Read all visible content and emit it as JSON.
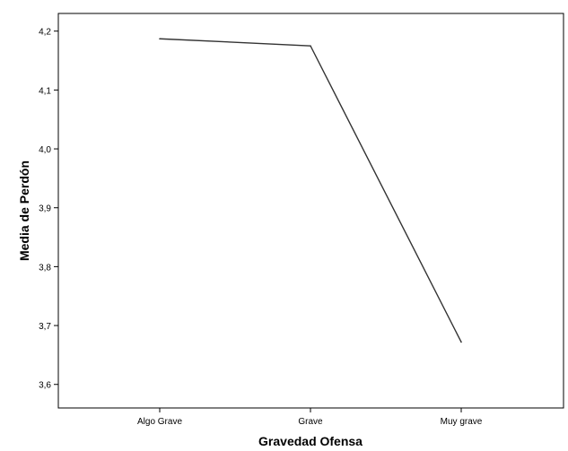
{
  "chart_data": {
    "type": "line",
    "title": "",
    "xlabel": "Gravedad Ofensa",
    "ylabel": "Media de Perdón",
    "categories": [
      "Algo Grave",
      "Grave",
      "Muy grave"
    ],
    "series": [
      {
        "values": [
          4.187,
          4.175,
          3.672
        ]
      }
    ],
    "ylim": [
      3.56,
      4.23
    ],
    "yticks": [
      "4,2",
      "4,1",
      "4,0",
      "3,9",
      "3,8",
      "3,7",
      "3,6"
    ],
    "ytick_values": [
      4.2,
      4.1,
      4.0,
      3.9,
      3.8,
      3.7,
      3.6
    ],
    "grid": false,
    "legend": "none",
    "line_color": "#333333",
    "axis_color": "#000000"
  }
}
